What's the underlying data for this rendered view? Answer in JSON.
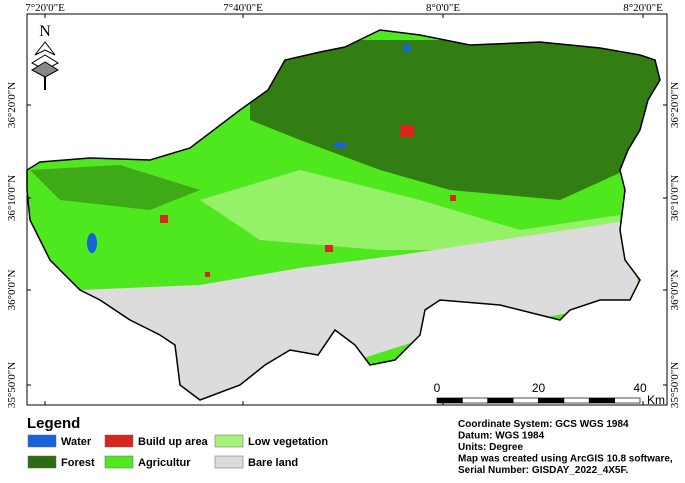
{
  "grid_labels": {
    "longitude": [
      "7°20'0\"E",
      "7°40'0\"E",
      "8°0'0\"E",
      "8°20'0\"E"
    ],
    "latitude": [
      "36°20'0\"N",
      "36°10'0\"N",
      "36°0'0\"N",
      "35°50'0\"N"
    ]
  },
  "north_arrow": "N",
  "legend": {
    "title": "Legend",
    "items": [
      {
        "label": "Water",
        "color": "#1565d8"
      },
      {
        "label": "Build up area",
        "color": "#d9261c"
      },
      {
        "label": "Low vegetation",
        "color": "#a6f27a"
      },
      {
        "label": "Forest",
        "color": "#2e6b12"
      },
      {
        "label": "Agricultur",
        "color": "#4fe81e"
      },
      {
        "label": "Bare land",
        "color": "#dcdcdc"
      }
    ]
  },
  "scale_bar": {
    "ticks": [
      0,
      20,
      40
    ],
    "unit": "Km"
  },
  "info": [
    "Coordinate System: GCS WGS 1984",
    "Datum: WGS 1984",
    "Units: Degree",
    "Map was created using ArcGIS 10.8 software,",
    "Serial Number: GISDAY_2022_4X5F."
  ]
}
